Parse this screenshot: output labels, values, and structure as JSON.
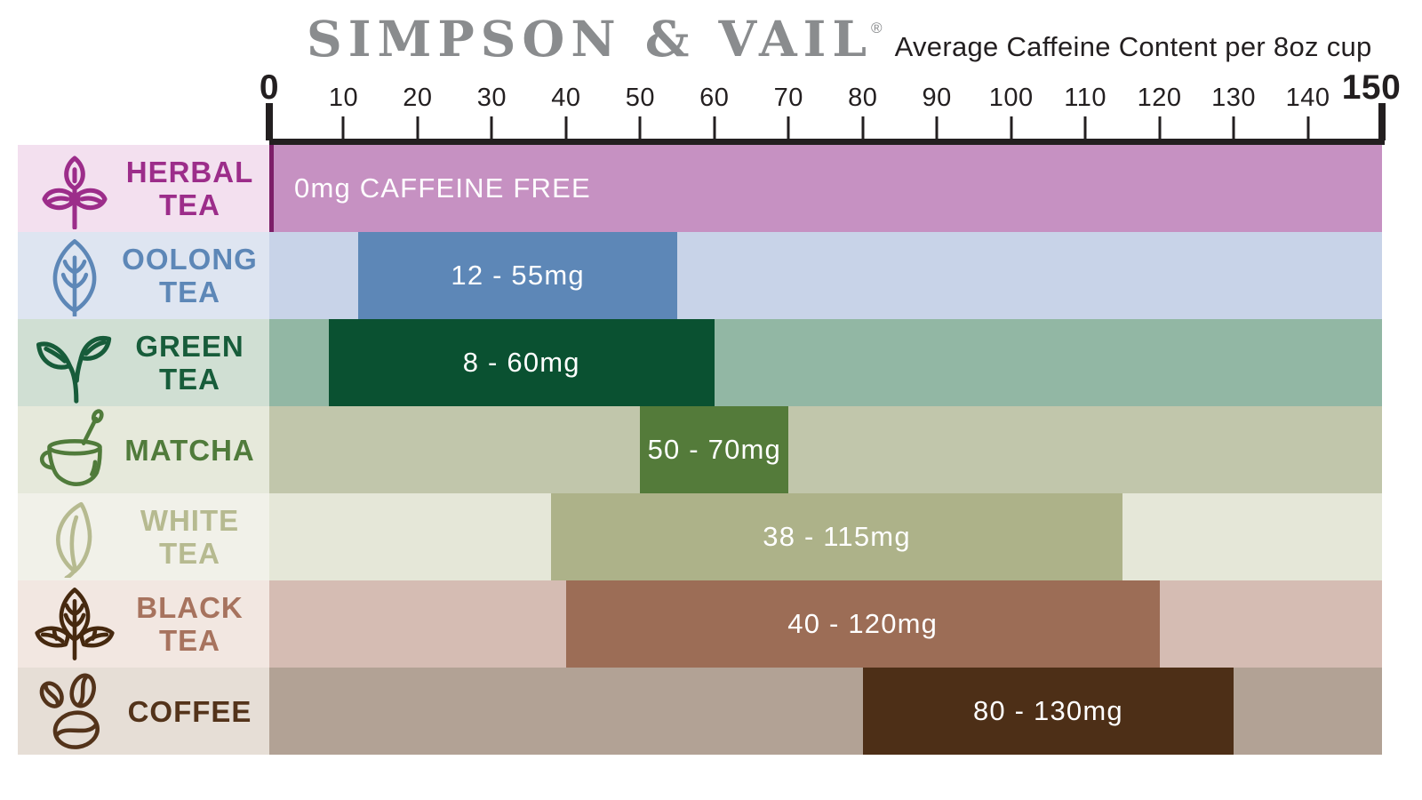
{
  "header": {
    "brand": "SIMPSON & VAIL",
    "registered": "®",
    "subtitle": "Average Caffeine Content per 8oz cup"
  },
  "chart_data": {
    "type": "bar",
    "orientation": "horizontal",
    "title": "Average Caffeine Content per 8oz cup",
    "unit": "mg",
    "xlim": [
      0,
      150
    ],
    "ticks": [
      0,
      10,
      20,
      30,
      40,
      50,
      60,
      70,
      80,
      90,
      100,
      110,
      120,
      130,
      140,
      150
    ],
    "grid": false,
    "legend": false,
    "axis_color": "#231f20",
    "rows": [
      {
        "name": "Herbal Tea",
        "label_lines": [
          "HERBAL",
          "TEA"
        ],
        "icon": "herbal-tea-plant-icon",
        "min": 0,
        "max": 150,
        "range_label": "0mg CAFFEINE FREE",
        "caffeine_free": true,
        "bar_text_align": "left",
        "bar_color": "#c691c2",
        "track_color": "#c691c2",
        "label_bg": "#f3e0ef",
        "label_color": "#9c2d8a",
        "icon_color": "#9c2d8a",
        "accent_color": "#7c1f68"
      },
      {
        "name": "Oolong Tea",
        "label_lines": [
          "OOLONG",
          "TEA"
        ],
        "icon": "oolong-leaf-icon",
        "min": 12,
        "max": 55,
        "range_label": "12 - 55mg",
        "bar_text_align": "center",
        "bar_color": "#5d87b7",
        "track_color": "#c8d3e8",
        "label_bg": "#dee5f1",
        "label_color": "#5d87b7",
        "icon_color": "#5d87b7"
      },
      {
        "name": "Green Tea",
        "label_lines": [
          "GREEN",
          "TEA"
        ],
        "icon": "green-tea-sprout-icon",
        "min": 8,
        "max": 60,
        "range_label": "8 - 60mg",
        "bar_text_align": "center",
        "bar_color": "#0a5131",
        "track_color": "#92b7a4",
        "label_bg": "#d0dfd3",
        "label_color": "#175c3a",
        "icon_color": "#175c3a"
      },
      {
        "name": "Matcha",
        "label_lines": [
          "MATCHA"
        ],
        "icon": "matcha-cup-icon",
        "min": 50,
        "max": 70,
        "range_label": "50 - 70mg",
        "bar_text_align": "center",
        "bar_color": "#547b3a",
        "track_color": "#c1c6ab",
        "label_bg": "#e6e9db",
        "label_color": "#507b3b",
        "icon_color": "#507b3b"
      },
      {
        "name": "White Tea",
        "label_lines": [
          "WHITE",
          "TEA"
        ],
        "icon": "white-tea-leaf-icon",
        "min": 38,
        "max": 115,
        "range_label": "38 - 115mg",
        "bar_text_align": "center",
        "bar_color": "#adb289",
        "track_color": "#e5e7d8",
        "label_bg": "#f1f1e9",
        "label_color": "#b6ba90",
        "icon_color": "#b6ba90"
      },
      {
        "name": "Black Tea",
        "label_lines": [
          "BLACK",
          "TEA"
        ],
        "icon": "black-tea-leaves-icon",
        "min": 40,
        "max": 120,
        "range_label": "40 - 120mg",
        "bar_text_align": "center",
        "bar_color": "#9c6d56",
        "track_color": "#d5bcb3",
        "label_bg": "#f2e7e1",
        "label_color": "#a7735e",
        "icon_color": "#46290f"
      },
      {
        "name": "Coffee",
        "label_lines": [
          "COFFEE"
        ],
        "icon": "coffee-beans-icon",
        "min": 80,
        "max": 130,
        "range_label": "80 - 130mg",
        "bar_text_align": "center",
        "bar_color": "#4d2f17",
        "track_color": "#b2a295",
        "label_bg": "#e6ded6",
        "label_color": "#53331a",
        "icon_color": "#53331a"
      }
    ]
  }
}
